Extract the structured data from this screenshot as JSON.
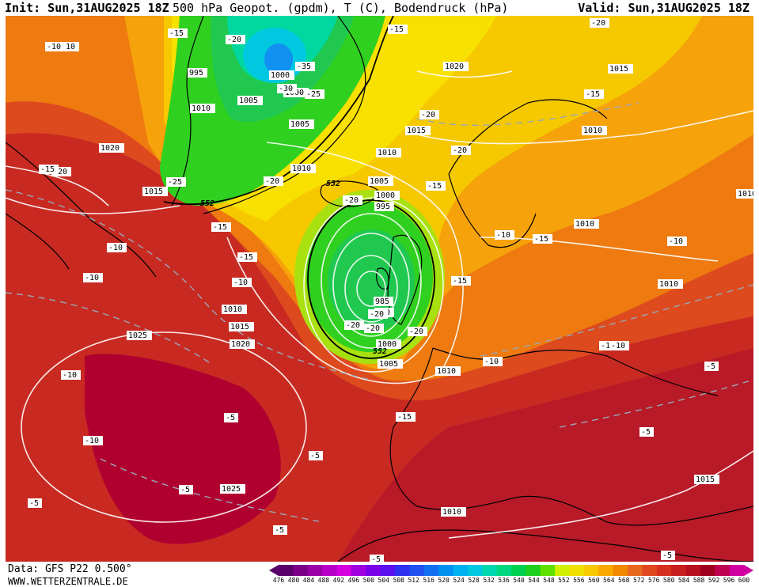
{
  "header": {
    "init": "Init: Sun,31AUG2025 18Z",
    "title": "500 hPa Geopot. (gpdm), T (C), Bodendruck (hPa)",
    "valid": "Valid: Sun,31AUG2025 18Z"
  },
  "footer": {
    "source": "Data: GFS P22 0.500°",
    "url": "WWW.WETTERZENTRALE.DE"
  },
  "colorbar": {
    "values": [
      "476",
      "480",
      "484",
      "488",
      "492",
      "496",
      "500",
      "504",
      "508",
      "512",
      "516",
      "520",
      "524",
      "528",
      "532",
      "536",
      "540",
      "544",
      "548",
      "552",
      "556",
      "560",
      "564",
      "568",
      "572",
      "576",
      "580",
      "584",
      "588",
      "592",
      "596",
      "600"
    ],
    "colors": [
      "#5a006a",
      "#7a0088",
      "#9a00a8",
      "#b800c8",
      "#d400e0",
      "#a000e0",
      "#7a00e8",
      "#5a10f0",
      "#3030f0",
      "#2050f0",
      "#1070f0",
      "#0090f0",
      "#00b0f0",
      "#00c8e0",
      "#00d8b0",
      "#00d880",
      "#00d050",
      "#20d020",
      "#60e000",
      "#d0f000",
      "#f0e000",
      "#f8c800",
      "#f8a800",
      "#f08800",
      "#e86820",
      "#e04820",
      "#d83020",
      "#c82020",
      "#b81020",
      "#a00020",
      "#c00050",
      "#d000a0"
    ]
  },
  "map": {
    "colors": {
      "ocean_red": "#c82a22",
      "deep_red": "#b00030",
      "orange_red": "#dd4a1e",
      "orange": "#ee7a10",
      "orange_yellow": "#f6a20a",
      "yellow": "#f6c800",
      "yellow_light": "#f8e000",
      "green_yellow": "#a8e010",
      "green": "#30d020",
      "green_mid": "#20c850",
      "cyan_green": "#00d8a0",
      "cyan": "#00c8e0",
      "blue": "#1090f0"
    },
    "pressure_labels": [
      "1020",
      "1015",
      "1010",
      "1005",
      "1000",
      "995",
      "1000",
      "1005",
      "1010",
      "1015",
      "1020",
      "1015",
      "1010",
      "1005",
      "1000",
      "995",
      "985",
      "990",
      "1000",
      "1005",
      "1010",
      "1015",
      "1020",
      "1025",
      "1025",
      "1010",
      "1010",
      "1010",
      "1015",
      "1010",
      "1010",
      "1010"
    ],
    "temp_labels": [
      "-15",
      "-10",
      "-20",
      "-15",
      "-20",
      "-35",
      "-30",
      "-25",
      "-20",
      "-15",
      "-20",
      "-25",
      "-20",
      "-15",
      "-15",
      "-10",
      "-10",
      "-20",
      "-15",
      "-10",
      "-20",
      "-15",
      "-10",
      "-20",
      "-20",
      "-20",
      "-15",
      "-10",
      "-10",
      "-10",
      "-5",
      "-10",
      "-5",
      "-5",
      "-5",
      "-5",
      "-10",
      "-5",
      "-5",
      "-10",
      "-10",
      "-20",
      "-15",
      "-15",
      "-5",
      "-5"
    ],
    "height_labels": [
      "552",
      "552",
      "552"
    ]
  }
}
